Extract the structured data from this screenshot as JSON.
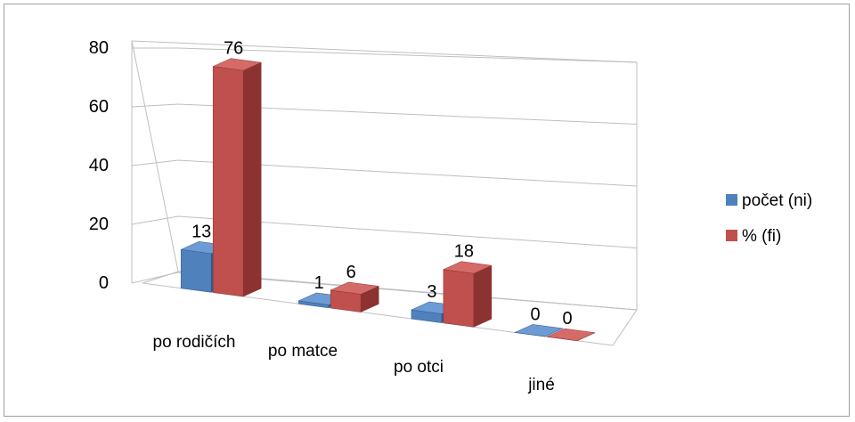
{
  "chart_data": {
    "type": "bar",
    "categories": [
      "po rodičích",
      "po matce",
      "po otci",
      "jiné"
    ],
    "series": [
      {
        "name": "počet (ni)",
        "values": [
          13,
          1,
          3,
          0
        ],
        "color": "#4f81bd"
      },
      {
        "name": "% (fi)",
        "values": [
          76,
          6,
          18,
          0
        ],
        "color": "#c0504d"
      }
    ],
    "yticks": [
      "0",
      "20",
      "40",
      "60",
      "80"
    ],
    "ylim": [
      0,
      80
    ],
    "grid": true,
    "legend": "right",
    "style": "3d-clustered-column"
  }
}
